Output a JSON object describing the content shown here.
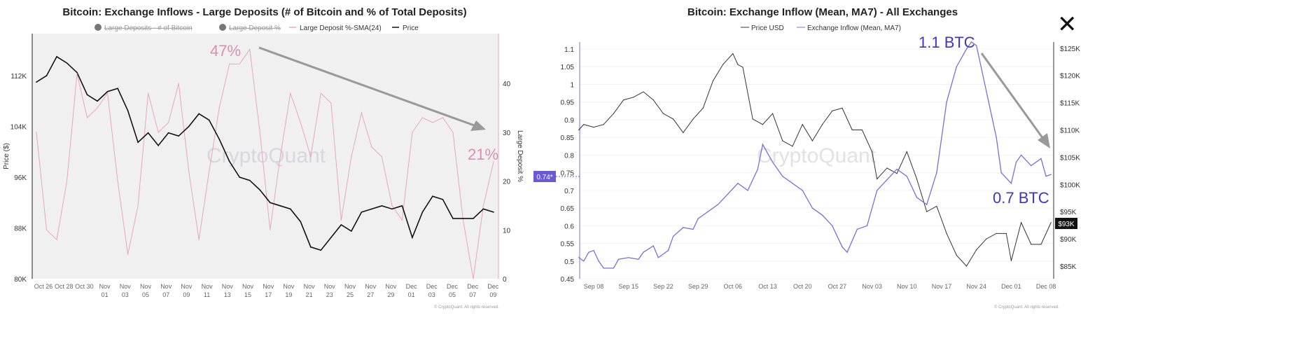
{
  "close_label": "✕",
  "chart_data": [
    {
      "type": "line",
      "title": "Bitcoin: Exchange Inflows - Large Deposits (# of Bitcoin and % of Total Deposits)",
      "legend": [
        {
          "label": "Large Deposits - # of Bitcoin",
          "hidden": true
        },
        {
          "label": "Large Deposit %",
          "hidden": true
        },
        {
          "label": "Large Deposit %-SMA(24)",
          "hidden": false
        },
        {
          "label": "Price",
          "hidden": false
        }
      ],
      "legend_placement": "top-center",
      "ylabel": "Price ($)",
      "y2label": "Large Deposit %",
      "yticks": [
        "80K",
        "88K",
        "96K",
        "104K",
        "112K"
      ],
      "ylim": [
        80,
        116
      ],
      "y2ticks": [
        "0",
        "10",
        "20",
        "30",
        "40"
      ],
      "y2lim": [
        0,
        48
      ],
      "xticks": [
        [
          "Oct 26",
          ""
        ],
        [
          "Oct 28",
          ""
        ],
        [
          "Oct 30",
          ""
        ],
        [
          "Nov",
          "01"
        ],
        [
          "Nov",
          "03"
        ],
        [
          "Nov",
          "05"
        ],
        [
          "Nov",
          "07"
        ],
        [
          "Nov",
          "09"
        ],
        [
          "Nov",
          "11"
        ],
        [
          "Nov",
          "13"
        ],
        [
          "Nov",
          "15"
        ],
        [
          "Nov",
          "17"
        ],
        [
          "Nov",
          "19"
        ],
        [
          "Nov",
          "21"
        ],
        [
          "Nov",
          "23"
        ],
        [
          "Nov",
          "25"
        ],
        [
          "Nov",
          "27"
        ],
        [
          "Nov",
          "29"
        ],
        [
          "Dec",
          "01"
        ],
        [
          "Dec",
          "03"
        ],
        [
          "Dec",
          "05"
        ],
        [
          "Dec",
          "07"
        ],
        [
          "Dec",
          "09"
        ]
      ],
      "x": [
        "Oct 25",
        "Oct 26",
        "Oct 27",
        "Oct 28",
        "Oct 29",
        "Oct 30",
        "Oct 31",
        "Nov 1",
        "Nov 2",
        "Nov 3",
        "Nov 4",
        "Nov 5",
        "Nov 6",
        "Nov 7",
        "Nov 8",
        "Nov 9",
        "Nov 10",
        "Nov 11",
        "Nov 12",
        "Nov 13",
        "Nov 14",
        "Nov 15",
        "Nov 16",
        "Nov 17",
        "Nov 18",
        "Nov 19",
        "Nov 20",
        "Nov 21",
        "Nov 22",
        "Nov 23",
        "Nov 24",
        "Nov 25",
        "Nov 26",
        "Nov 27",
        "Nov 28",
        "Nov 29",
        "Nov 30",
        "Dec 1",
        "Dec 2",
        "Dec 3",
        "Dec 4",
        "Dec 5",
        "Dec 6",
        "Dec 7",
        "Dec 8",
        "Dec 9"
      ],
      "series": [
        {
          "name": "Price",
          "unit": "K USD",
          "color": "#111111",
          "values": [
            111,
            112,
            115,
            114,
            112.5,
            109,
            108,
            109.5,
            110,
            106.5,
            101.5,
            103,
            101,
            103,
            102.5,
            104,
            106,
            105,
            102,
            98.5,
            96,
            95.5,
            94,
            92,
            91.5,
            91,
            89,
            85,
            84.5,
            86.5,
            88.5,
            87.5,
            90.5,
            91,
            91.5,
            91,
            91.5,
            86.5,
            90.5,
            93,
            92.5,
            89.5,
            89.5,
            89.5,
            91,
            90.5
          ]
        },
        {
          "name": "Large Deposit %-SMA(24)",
          "unit": "%",
          "color": "#e8a6c0",
          "values": [
            30,
            10,
            8,
            20,
            42,
            33,
            35,
            38,
            20,
            5,
            15,
            38,
            30,
            32,
            40,
            22,
            8,
            22,
            35,
            44,
            44,
            47,
            30,
            10,
            25,
            38,
            32,
            25,
            38,
            36,
            12,
            25,
            34,
            27,
            25,
            15,
            12,
            30,
            33,
            32,
            33,
            30,
            12,
            0,
            15,
            24
          ]
        }
      ],
      "annotations": [
        {
          "text": "47%"
        },
        {
          "text": "21%"
        }
      ],
      "watermark": "CryptoQuant",
      "footer": "© CryptoQuant. All rights reserved."
    },
    {
      "type": "line",
      "title": "Bitcoin: Exchange Inflow (Mean, MA7) - All Exchanges",
      "legend": [
        {
          "label": "Price USD"
        },
        {
          "label": "Exchange Inflow (Mean, MA7)"
        }
      ],
      "legend_placement": "top-center",
      "yticks": [
        "0.45",
        "0.5",
        "0.55",
        "0.6",
        "0.65",
        "0.7",
        "0.75",
        "0.8",
        "0.85",
        "0.9",
        "0.95",
        "1",
        "1.05",
        "1.1"
      ],
      "ylim": [
        0.45,
        1.1
      ],
      "y2ticks": [
        "$85K",
        "$90K",
        "$95K",
        "$100K",
        "$105K",
        "$110K",
        "$115K",
        "$120K",
        "$125K"
      ],
      "y2lim": [
        85,
        125
      ],
      "xticks": [
        "Sep 08",
        "Sep 15",
        "Sep 22",
        "Sep 29",
        "Oct 06",
        "Oct 13",
        "Oct 20",
        "Oct 27",
        "Nov 03",
        "Nov 10",
        "Nov 17",
        "Nov 24",
        "Dec 01",
        "Dec 08"
      ],
      "series": [
        {
          "name": "Exchange Inflow (Mean, MA7)",
          "unit": "BTC",
          "color": "#7b6fd6",
          "x": [
            "Sep 5",
            "Sep 6",
            "Sep 7",
            "Sep 8",
            "Sep 9",
            "Sep 10",
            "Sep 12",
            "Sep 13",
            "Sep 15",
            "Sep 17",
            "Sep 18",
            "Sep 20",
            "Sep 21",
            "Sep 23",
            "Sep 24",
            "Sep 26",
            "Sep 28",
            "Sep 29",
            "Oct 1",
            "Oct 3",
            "Oct 5",
            "Oct 7",
            "Oct 9",
            "Oct 11",
            "Oct 12",
            "Oct 14",
            "Oct 16",
            "Oct 18",
            "Oct 20",
            "Oct 22",
            "Oct 24",
            "Oct 26",
            "Oct 28",
            "Oct 29",
            "Oct 31",
            "Nov 2",
            "Nov 4",
            "Nov 6",
            "Nov 8",
            "Nov 10",
            "Nov 12",
            "Nov 14",
            "Nov 16",
            "Nov 18",
            "Nov 20",
            "Nov 22",
            "Nov 23",
            "Nov 24",
            "Nov 26",
            "Nov 28",
            "Nov 29",
            "Dec 1",
            "Dec 2",
            "Dec 3",
            "Dec 5",
            "Dec 7",
            "Dec 8",
            "Dec 9"
          ],
          "values": [
            0.51,
            0.5,
            0.525,
            0.53,
            0.5,
            0.48,
            0.48,
            0.505,
            0.51,
            0.505,
            0.525,
            0.543,
            0.51,
            0.53,
            0.57,
            0.595,
            0.59,
            0.62,
            0.64,
            0.66,
            0.69,
            0.72,
            0.7,
            0.76,
            0.83,
            0.78,
            0.74,
            0.72,
            0.7,
            0.65,
            0.63,
            0.6,
            0.54,
            0.525,
            0.59,
            0.6,
            0.7,
            0.73,
            0.76,
            0.74,
            0.68,
            0.66,
            0.75,
            0.95,
            1.05,
            1.1,
            1.12,
            1.11,
            0.98,
            0.85,
            0.75,
            0.72,
            0.78,
            0.8,
            0.77,
            0.79,
            0.74,
            0.745
          ]
        },
        {
          "name": "Price USD",
          "unit": "K USD",
          "color": "#333333",
          "x": [
            "Sep 5",
            "Sep 6",
            "Sep 8",
            "Sep 10",
            "Sep 12",
            "Sep 14",
            "Sep 16",
            "Sep 18",
            "Sep 20",
            "Sep 22",
            "Sep 24",
            "Sep 26",
            "Sep 28",
            "Sep 30",
            "Oct 2",
            "Oct 4",
            "Oct 6",
            "Oct 7",
            "Oct 8",
            "Oct 10",
            "Oct 12",
            "Oct 14",
            "Oct 16",
            "Oct 18",
            "Oct 20",
            "Oct 22",
            "Oct 24",
            "Oct 26",
            "Oct 28",
            "Oct 30",
            "Nov 1",
            "Nov 3",
            "Nov 4",
            "Nov 6",
            "Nov 8",
            "Nov 10",
            "Nov 12",
            "Nov 14",
            "Nov 16",
            "Nov 18",
            "Nov 20",
            "Nov 22",
            "Nov 24",
            "Nov 26",
            "Nov 28",
            "Nov 30",
            "Dec 1",
            "Dec 3",
            "Dec 5",
            "Dec 7",
            "Dec 9"
          ],
          "values": [
            110,
            111,
            110.5,
            111,
            113,
            115.5,
            116,
            117,
            115.5,
            113,
            112,
            109.5,
            112,
            114,
            119,
            122,
            124,
            122,
            121.5,
            112,
            111,
            113,
            108,
            107,
            111,
            108,
            111,
            113.5,
            114,
            110,
            110,
            106,
            101,
            103,
            102,
            106,
            101,
            95,
            96,
            91,
            87,
            85,
            88,
            90,
            91,
            91,
            86,
            93,
            89,
            89,
            93
          ]
        }
      ],
      "badges": {
        "inflow": "0.74*",
        "price": "$93K"
      },
      "annotations": [
        {
          "text": "1.1 BTC"
        },
        {
          "text": "0.7 BTC"
        }
      ],
      "watermark": "CryptoQuant",
      "footer": "© CryptoQuant. All rights reserved."
    }
  ]
}
